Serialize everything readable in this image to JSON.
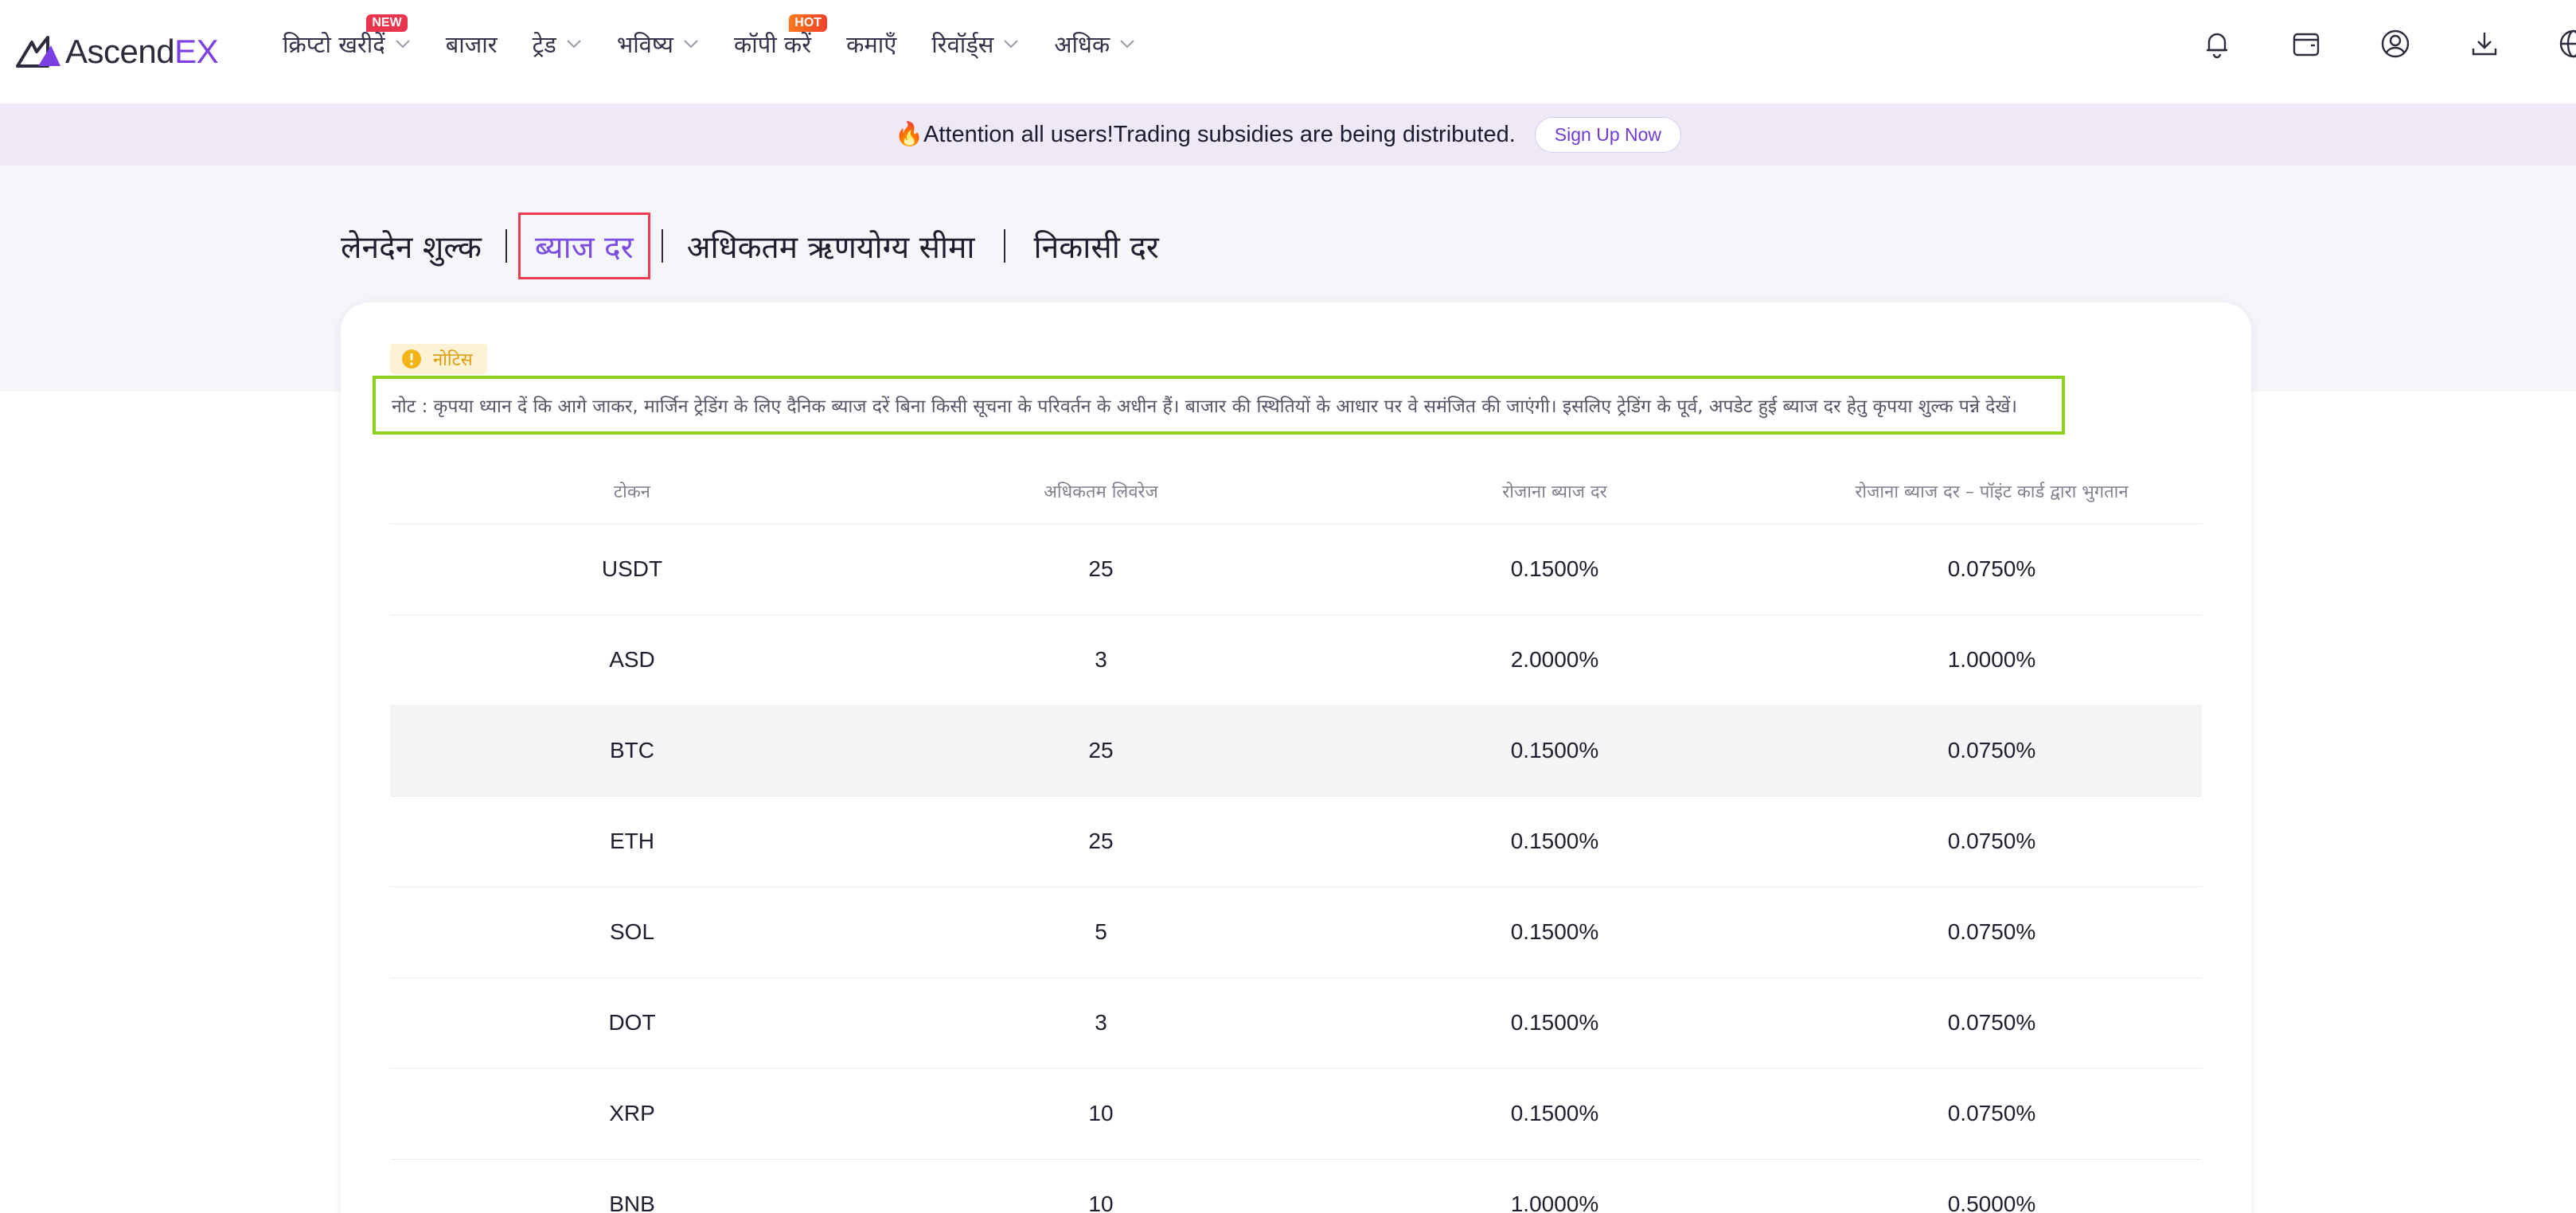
{
  "brand": {
    "name_main": "Ascend",
    "name_accent": "EX"
  },
  "nav": {
    "items": [
      {
        "label": "क्रिप्टो खरीदें",
        "badge": "NEW",
        "has_dropdown": true
      },
      {
        "label": "बाजार",
        "badge": "",
        "has_dropdown": false
      },
      {
        "label": "ट्रेड",
        "badge": "",
        "has_dropdown": true
      },
      {
        "label": "भविष्य",
        "badge": "",
        "has_dropdown": true
      },
      {
        "label": "कॉपी करें",
        "badge": "HOT",
        "has_dropdown": false
      },
      {
        "label": "कमाएँ",
        "badge": "",
        "has_dropdown": false
      },
      {
        "label": "रिवॉर्ड्स",
        "badge": "",
        "has_dropdown": true
      },
      {
        "label": "अधिक",
        "badge": "",
        "has_dropdown": true
      }
    ],
    "icons": [
      "bell-icon",
      "wallet-icon",
      "user-icon",
      "download-icon",
      "globe-icon"
    ]
  },
  "announcement": {
    "emoji": "🔥",
    "text": "Attention all users!Trading subsidies are being distributed.",
    "button": "Sign Up Now"
  },
  "tabs": [
    {
      "label": "लेनदेन शुल्क",
      "active": false
    },
    {
      "label": "ब्याज दर",
      "active": true
    },
    {
      "label": "अधिकतम ऋणयोग्य सीमा",
      "active": false
    },
    {
      "label": "निकासी दर",
      "active": false
    }
  ],
  "notice": {
    "tag": "नोटिस",
    "text": "नोट : कृपया ध्यान दें कि आगे जाकर, मार्जिन ट्रेडिंग के लिए दैनिक ब्याज दरें बिना किसी सूचना के परिवर्तन के अधीन हैं। बाजार की स्थितियों के आधार पर वे समंजित की जाएंगी। इसलिए ट्रेडिंग के पूर्व, अपडेट हुई ब्याज दर हेतु कृपया शुल्क पन्ने देखें।"
  },
  "table": {
    "headers": [
      "टोकन",
      "अधिकतम लिवरेज",
      "रोजाना ब्याज दर",
      "रोजाना ब्याज दर – पॉइंट कार्ड द्वारा भुगतान"
    ],
    "rows": [
      [
        "USDT",
        "25",
        "0.1500%",
        "0.0750%"
      ],
      [
        "ASD",
        "3",
        "2.0000%",
        "1.0000%"
      ],
      [
        "BTC",
        "25",
        "0.1500%",
        "0.0750%"
      ],
      [
        "ETH",
        "25",
        "0.1500%",
        "0.0750%"
      ],
      [
        "SOL",
        "5",
        "0.1500%",
        "0.0750%"
      ],
      [
        "DOT",
        "3",
        "0.1500%",
        "0.0750%"
      ],
      [
        "XRP",
        "10",
        "0.1500%",
        "0.0750%"
      ],
      [
        "BNB",
        "10",
        "1.0000%",
        "0.5000%"
      ]
    ],
    "highlighted_row": 2
  },
  "colors": {
    "accent": "#7b3fe4",
    "active_tab_border": "#ef3b4f",
    "notice_border": "#8ed21b",
    "announce_bg": "#efe9f7"
  }
}
